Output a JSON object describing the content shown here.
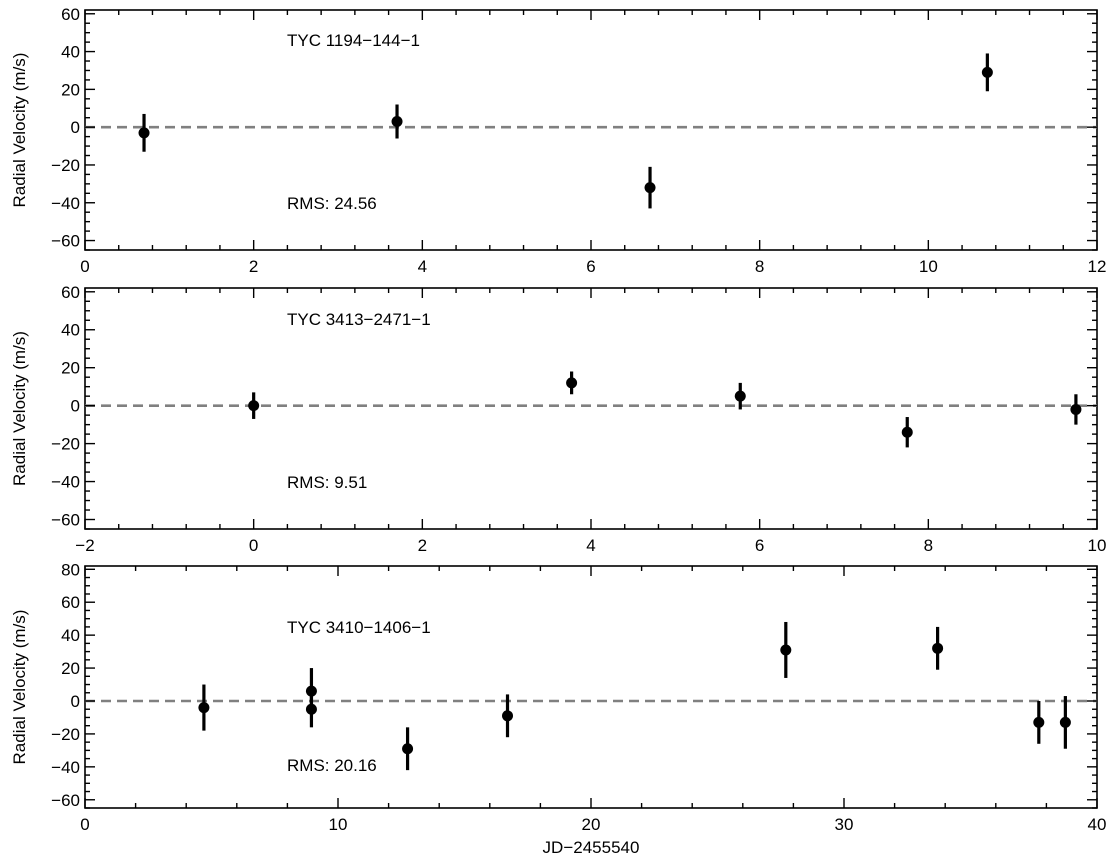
{
  "chart_data": [
    {
      "type": "scatter",
      "name": "TYC 1194-144-1",
      "annotation": "TYC 1194−144−1",
      "rms_label": "RMS: 24.56",
      "ylabel": "Radial Velocity (m/s)",
      "xlabel": "",
      "xlim": [
        0,
        12
      ],
      "ylim": [
        -65,
        62
      ],
      "xticks": [
        0,
        2,
        4,
        6,
        8,
        10,
        12
      ],
      "xtick_labels": [
        "0",
        "2",
        "4",
        "6",
        "8",
        "10",
        "12"
      ],
      "yticks": [
        -60,
        -40,
        -20,
        0,
        20,
        40,
        60
      ],
      "ytick_labels": [
        "−60",
        "−40",
        "−20",
        "0",
        "20",
        "40",
        "60"
      ],
      "reference_line": 0,
      "points": [
        {
          "x": 0.7,
          "y": -3,
          "err": 10
        },
        {
          "x": 3.7,
          "y": 3,
          "err": 9
        },
        {
          "x": 6.7,
          "y": -32,
          "err": 11
        },
        {
          "x": 10.7,
          "y": 29,
          "err": 10
        }
      ]
    },
    {
      "type": "scatter",
      "name": "TYC 3413-2471-1",
      "annotation": "TYC 3413−2471−1",
      "rms_label": "RMS: 9.51",
      "ylabel": "Radial Velocity (m/s)",
      "xlabel": "",
      "xlim": [
        -2,
        10
      ],
      "ylim": [
        -65,
        62
      ],
      "xticks": [
        -2,
        0,
        2,
        4,
        6,
        8,
        10
      ],
      "xtick_labels": [
        "−2",
        "0",
        "2",
        "4",
        "6",
        "8",
        "10"
      ],
      "yticks": [
        -60,
        -40,
        -20,
        0,
        20,
        40,
        60
      ],
      "ytick_labels": [
        "−60",
        "−40",
        "−20",
        "0",
        "20",
        "40",
        "60"
      ],
      "reference_line": 0,
      "points": [
        {
          "x": 0.0,
          "y": 0,
          "err": 7
        },
        {
          "x": 3.77,
          "y": 12,
          "err": 6
        },
        {
          "x": 5.77,
          "y": 5,
          "err": 7
        },
        {
          "x": 7.75,
          "y": -14,
          "err": 8
        },
        {
          "x": 9.75,
          "y": -2,
          "err": 8
        }
      ]
    },
    {
      "type": "scatter",
      "name": "TYC 3410-1406-1",
      "annotation": "TYC 3410−1406−1",
      "rms_label": "RMS: 20.16",
      "ylabel": "Radial Velocity (m/s)",
      "xlabel": "JD−2455540",
      "xlim": [
        0,
        40
      ],
      "ylim": [
        -65,
        82
      ],
      "xticks": [
        0,
        10,
        20,
        30,
        40
      ],
      "xtick_labels": [
        "0",
        "10",
        "20",
        "30",
        "40"
      ],
      "yticks": [
        -60,
        -40,
        -20,
        0,
        20,
        40,
        60,
        80
      ],
      "ytick_labels": [
        "−60",
        "−40",
        "−20",
        "0",
        "20",
        "40",
        "60",
        "80"
      ],
      "reference_line": 0,
      "points": [
        {
          "x": 4.7,
          "y": -4,
          "err": 14
        },
        {
          "x": 8.95,
          "y": 6,
          "err": 14
        },
        {
          "x": 8.95,
          "y": -5,
          "err": 11
        },
        {
          "x": 12.75,
          "y": -29,
          "err": 13
        },
        {
          "x": 16.7,
          "y": -9,
          "err": 13
        },
        {
          "x": 27.7,
          "y": 31,
          "err": 17
        },
        {
          "x": 33.7,
          "y": 32,
          "err": 13
        },
        {
          "x": 37.7,
          "y": -13,
          "err": 13
        },
        {
          "x": 38.75,
          "y": -13,
          "err": 16
        }
      ]
    }
  ]
}
